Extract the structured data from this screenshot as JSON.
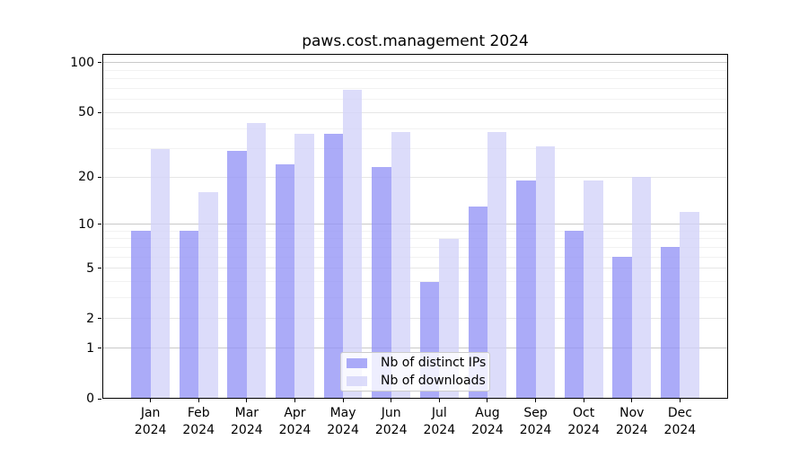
{
  "title": "paws.cost.management 2024",
  "chart_data": {
    "type": "bar",
    "title": "paws.cost.management 2024",
    "categories": [
      "Jan 2024",
      "Feb 2024",
      "Mar 2024",
      "Apr 2024",
      "May 2024",
      "Jun 2024",
      "Jul 2024",
      "Aug 2024",
      "Sep 2024",
      "Oct 2024",
      "Nov 2024",
      "Dec 2024"
    ],
    "x_tick_line1": [
      "Jan",
      "Feb",
      "Mar",
      "Apr",
      "May",
      "Jun",
      "Jul",
      "Aug",
      "Sep",
      "Oct",
      "Nov",
      "Dec"
    ],
    "x_tick_line2": "2024",
    "series": [
      {
        "name": "Nb of distinct IPs",
        "color": "#aaaaf8",
        "values": [
          9,
          9,
          29,
          24,
          37,
          23,
          4,
          13,
          19,
          9,
          6,
          7
        ]
      },
      {
        "name": "Nb of downloads",
        "color": "#dcdcfa",
        "values": [
          30,
          16,
          43,
          37,
          69,
          38,
          8,
          38,
          31,
          19,
          20,
          12
        ]
      }
    ],
    "yscale": "log(y+1)",
    "y_ticks": [
      0,
      1,
      2,
      5,
      10,
      20,
      50,
      100
    ],
    "y_minor_ticks": [
      3,
      4,
      6,
      7,
      8,
      9,
      30,
      40,
      60,
      70,
      80,
      90
    ],
    "ylim": [
      0,
      113
    ],
    "grid": true,
    "legend_position": "lower center",
    "xlabel": "",
    "ylabel": ""
  },
  "legend": {
    "items": [
      {
        "label": "Nb of distinct IPs",
        "color": "#aaaaf8"
      },
      {
        "label": "Nb of downloads",
        "color": "#dcdcfa"
      }
    ]
  },
  "colors": {
    "bar_distinct_ips": "#aaaaf8",
    "bar_downloads": "#dcdcfa",
    "major_gridline": "#c9c9c9",
    "mid_gridline": "#e6e6e6",
    "minor_gridline": "#f2f2f2",
    "axis": "#000000",
    "legend_border": "#cccccc"
  }
}
